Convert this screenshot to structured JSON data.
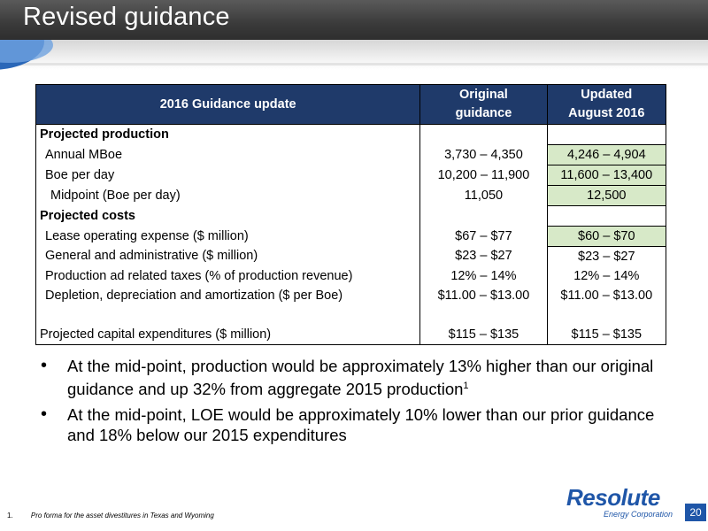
{
  "slide": {
    "title": "Revised guidance",
    "page_number": "20"
  },
  "table": {
    "header": {
      "label": "2016 Guidance update",
      "original_line1": "Original",
      "original_line2": "guidance",
      "updated_line1": "Updated",
      "updated_line2": "August 2016"
    },
    "section_production": "Projected production",
    "production_rows": [
      {
        "label": "Annual MBoe",
        "original": "3,730 – 4,350",
        "updated": "4,246 – 4,904"
      },
      {
        "label": "Boe per day",
        "original": "10,200 – 11,900",
        "updated": "11,600 – 13,400"
      },
      {
        "label": "Midpoint (Boe per day)",
        "original": "11,050",
        "updated": "12,500"
      }
    ],
    "section_costs": "Projected costs",
    "cost_rows": [
      {
        "label": "Lease operating expense ($ million)",
        "original": "$67 – $77",
        "updated": "$60 – $70"
      },
      {
        "label": "General and administrative ($ million)",
        "original": "$23 – $27",
        "updated": "$23 – $27"
      },
      {
        "label": "Production ad related taxes (% of production revenue)",
        "original": "12% – 14%",
        "updated": "12% – 14%"
      },
      {
        "label": "Depletion, depreciation and amortization ($ per Boe)",
        "original": "$11.00 – $13.00",
        "updated": "$11.00 – $13.00"
      }
    ],
    "capex": {
      "label": "Projected capital expenditures ($ million)",
      "original": "$115 – $135",
      "updated": "$115 – $135"
    }
  },
  "bullets": [
    {
      "text": "At the mid-point, production would be approximately 13% higher than our original guidance and up 32% from aggregate 2015 production",
      "sup": "1"
    },
    {
      "text": "At the mid-point, LOE would be approximately 10% lower than our prior guidance and 18% below our 2015 expenditures",
      "sup": ""
    }
  ],
  "footnote": {
    "number": "1.",
    "text": "Pro forma for the asset divestitures in Texas and Wyoming"
  },
  "logo": {
    "name": "Resolute",
    "sub": "Energy Corporation"
  },
  "colors": {
    "header_fill": "#1f3a6a",
    "highlight_green": "#d7e9c8",
    "brand_blue": "#1f56a8"
  }
}
